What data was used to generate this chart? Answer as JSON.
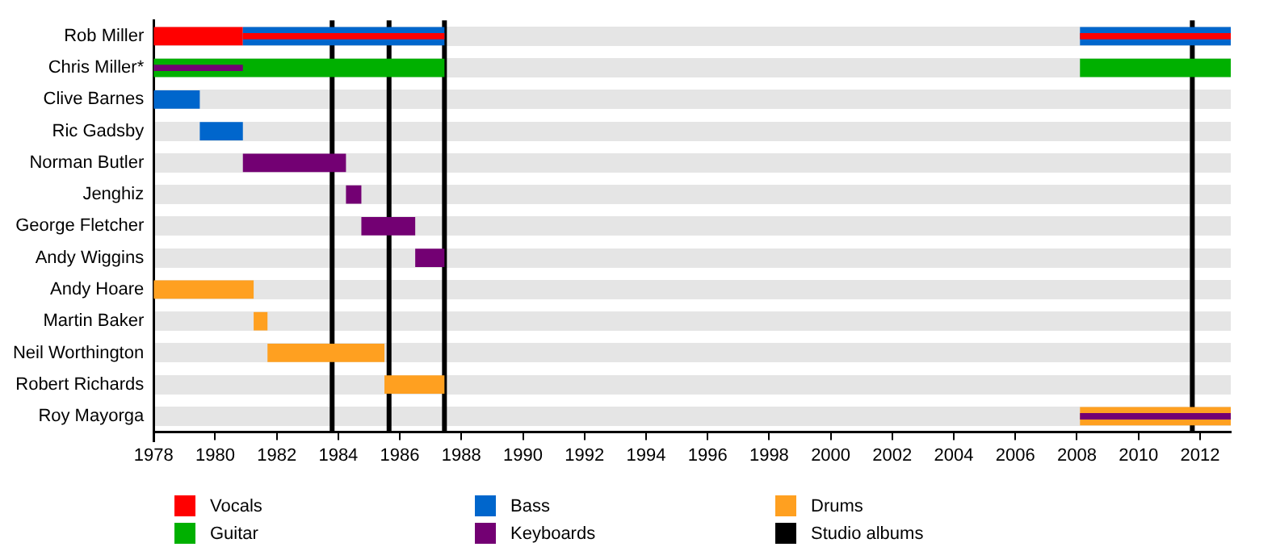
{
  "chart_data": {
    "type": "bar",
    "orientation": "horizontal",
    "categories": [
      "Rob Miller",
      "Chris Miller*",
      "Clive Barnes",
      "Ric Gadsby",
      "Norman Butler",
      "Jenghiz",
      "George Fletcher",
      "Andy Wiggins",
      "Andy Hoare",
      "Martin Baker",
      "Neil Worthington",
      "Robert Richards",
      "Roy Mayorga"
    ],
    "series": [
      {
        "name": "Vocals",
        "color": "#ff0000",
        "base": [
          1978,
          null,
          null,
          null,
          null,
          null,
          null,
          null,
          null,
          null,
          null,
          null,
          null
        ],
        "values": [
          2.9,
          null,
          null,
          null,
          null,
          null,
          null,
          null,
          null,
          null,
          null,
          null,
          null
        ]
      },
      {
        "name": "Guitar",
        "color": "#00b000",
        "base": [
          null,
          1978,
          null,
          null,
          null,
          null,
          null,
          null,
          null,
          null,
          null,
          null,
          null
        ],
        "values": [
          null,
          9.45,
          null,
          null,
          null,
          null,
          null,
          null,
          null,
          null,
          null,
          null,
          null
        ]
      },
      {
        "name": "Bass",
        "color": "#0066cc",
        "base": [
          1980.9,
          null,
          1978,
          1979.5,
          null,
          null,
          null,
          null,
          null,
          null,
          null,
          null,
          null
        ],
        "values": [
          6.55,
          null,
          1.5,
          1.4,
          null,
          null,
          null,
          null,
          null,
          null,
          null,
          null,
          null
        ]
      },
      {
        "name": "Keyboards",
        "color": "#730073",
        "base": [
          null,
          null,
          null,
          null,
          1980.9,
          1984.25,
          1984.75,
          1986.5,
          null,
          null,
          null,
          null,
          null
        ],
        "values": [
          null,
          null,
          null,
          null,
          3.35,
          0.5,
          1.75,
          0.95,
          null,
          null,
          null,
          null,
          null
        ]
      },
      {
        "name": "Drums",
        "color": "#ffa020",
        "base": [
          null,
          null,
          null,
          null,
          null,
          null,
          null,
          null,
          1978,
          1981.25,
          1981.7,
          1985.5,
          null
        ],
        "values": [
          null,
          null,
          null,
          null,
          null,
          null,
          null,
          null,
          3.25,
          0.45,
          3.8,
          1.95,
          null
        ]
      },
      {
        "color": "#0066cc",
        "base": [
          2008.1,
          null,
          null,
          null,
          null,
          null,
          null,
          null,
          null,
          null,
          null,
          null,
          null
        ],
        "values": [
          4.9,
          null,
          null,
          null,
          null,
          null,
          null,
          null,
          null,
          null,
          null,
          null,
          null
        ]
      },
      {
        "color": "#00b000",
        "base": [
          null,
          2008.1,
          null,
          null,
          null,
          null,
          null,
          null,
          null,
          null,
          null,
          null,
          null
        ],
        "values": [
          null,
          4.9,
          null,
          null,
          null,
          null,
          null,
          null,
          null,
          null,
          null,
          null,
          null
        ]
      },
      {
        "color": "#ffa020",
        "base": [
          null,
          null,
          null,
          null,
          null,
          null,
          null,
          null,
          null,
          null,
          null,
          null,
          2008.1
        ],
        "values": [
          null,
          null,
          null,
          null,
          null,
          null,
          null,
          null,
          null,
          null,
          null,
          null,
          4.9
        ]
      },
      {
        "color": "#ff0000",
        "base": [
          1980.9,
          null,
          null,
          null,
          null,
          null,
          null,
          null,
          null,
          null,
          null,
          null,
          null
        ],
        "values": [
          6.55,
          null,
          null,
          null,
          null,
          null,
          null,
          null,
          null,
          null,
          null,
          null,
          null
        ]
      },
      {
        "color": "#730073",
        "base": [
          null,
          1978,
          null,
          null,
          null,
          null,
          null,
          null,
          null,
          null,
          null,
          null,
          null
        ],
        "values": [
          null,
          2.9,
          null,
          null,
          null,
          null,
          null,
          null,
          null,
          null,
          null,
          null,
          null
        ]
      },
      {
        "color": "#ff0000",
        "base": [
          2008.1,
          null,
          null,
          null,
          null,
          null,
          null,
          null,
          null,
          null,
          null,
          null,
          null
        ],
        "values": [
          4.9,
          null,
          null,
          null,
          null,
          null,
          null,
          null,
          null,
          null,
          null,
          null,
          null
        ]
      },
      {
        "color": "#730073",
        "base": [
          null,
          null,
          null,
          null,
          null,
          null,
          null,
          null,
          null,
          null,
          null,
          null,
          2008.1
        ],
        "values": [
          null,
          null,
          null,
          null,
          null,
          null,
          null,
          null,
          null,
          null,
          null,
          null,
          4.9
        ]
      }
    ],
    "xlim": [
      1978,
      2013
    ],
    "xticks": [
      1978,
      1980,
      1982,
      1984,
      1986,
      1988,
      1990,
      1992,
      1994,
      1996,
      1998,
      2000,
      2002,
      2004,
      2006,
      2008,
      2010,
      2012
    ],
    "ref_lines": [
      {
        "axis": "x",
        "value": 1983.8,
        "label": "Studio albums",
        "color": "#000000"
      },
      {
        "axis": "x",
        "value": 1985.65,
        "color": "#000000"
      },
      {
        "axis": "x",
        "value": 1987.45,
        "color": "#000000"
      },
      {
        "axis": "x",
        "value": 2011.75,
        "color": "#000000"
      }
    ],
    "grid": "y",
    "legend": "bottom"
  }
}
